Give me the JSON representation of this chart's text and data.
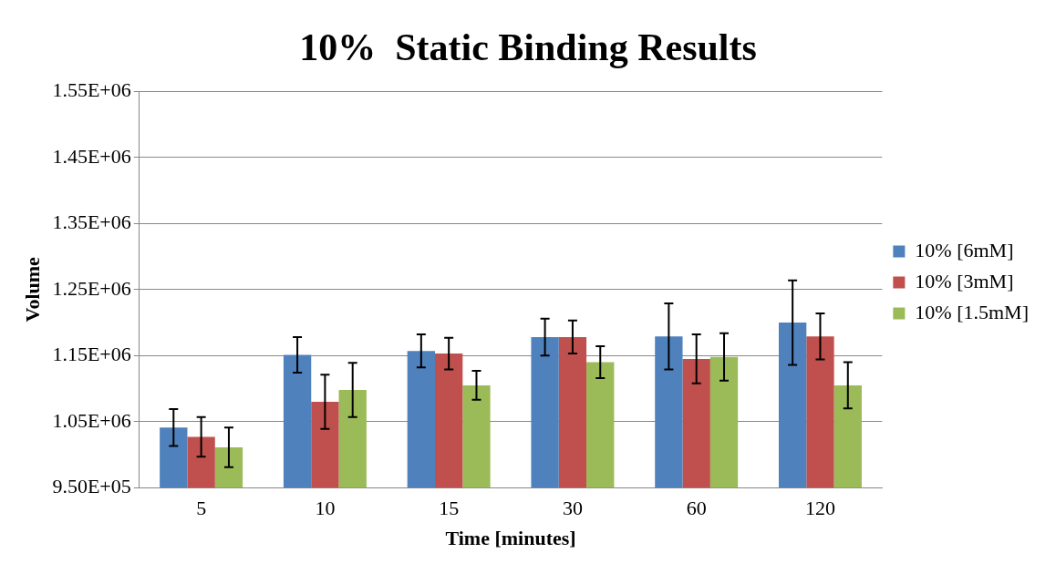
{
  "chart_data": {
    "type": "bar",
    "title": "10%  Static Binding Results",
    "xlabel": "Time [minutes]",
    "ylabel": "Volume",
    "categories": [
      "5",
      "10",
      "15",
      "30",
      "60",
      "120"
    ],
    "series": [
      {
        "name": "10% [6mM]",
        "color": "#4f81bd",
        "values": [
          1041000,
          1151000,
          1157000,
          1178000,
          1179000,
          1200000
        ],
        "errors": [
          28000,
          27000,
          25000,
          28000,
          50000,
          64000
        ]
      },
      {
        "name": "10% [3mM]",
        "color": "#c0504d",
        "values": [
          1027000,
          1080000,
          1153000,
          1178000,
          1145000,
          1179000
        ],
        "errors": [
          30000,
          41000,
          24000,
          25000,
          37000,
          35000
        ]
      },
      {
        "name": "10% [1.5mM]",
        "color": "#9bbb59",
        "values": [
          1011000,
          1098000,
          1105000,
          1140000,
          1148000,
          1105000
        ],
        "errors": [
          30000,
          41000,
          22000,
          24000,
          36000,
          35000
        ]
      }
    ],
    "ylim": [
      950000,
      1550000
    ],
    "yticks": [
      {
        "value": 950000,
        "label": "9.50E+05"
      },
      {
        "value": 1050000,
        "label": "1.05E+06"
      },
      {
        "value": 1150000,
        "label": "1.15E+06"
      },
      {
        "value": 1250000,
        "label": "1.25E+06"
      },
      {
        "value": 1350000,
        "label": "1.35E+06"
      },
      {
        "value": 1450000,
        "label": "1.45E+06"
      },
      {
        "value": 1550000,
        "label": "1.55E+06"
      }
    ],
    "grid": "y",
    "legend": "right"
  }
}
